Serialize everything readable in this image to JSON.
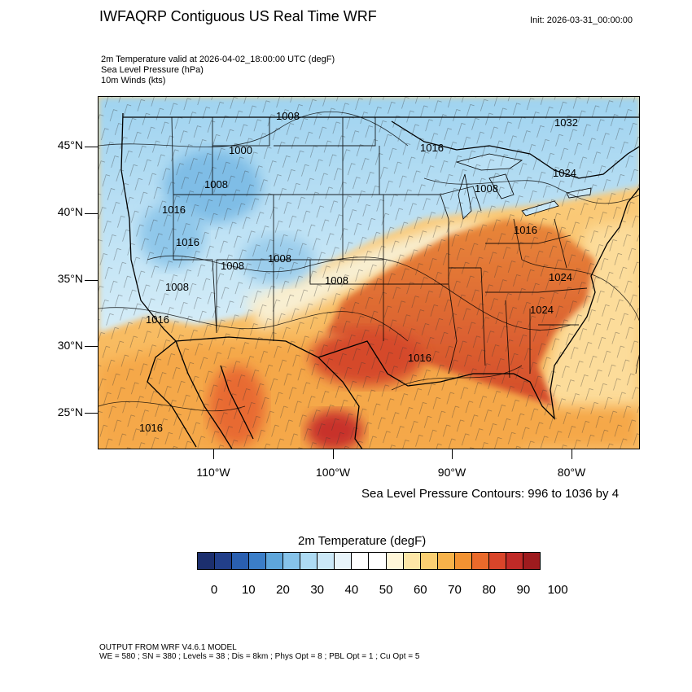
{
  "header": {
    "title": "IWFAQRP Contiguous US Real Time WRF",
    "init": "Init: 2026-03-31_00:00:00",
    "lines": [
      "2m Temperature valid at 2026-04-02_18:00:00 UTC   (degF)",
      "Sea Level Pressure   (hPa)",
      "10m Winds   (kts)"
    ]
  },
  "map": {
    "lat_labels": [
      "45°N",
      "40°N",
      "35°N",
      "30°N",
      "25°N"
    ],
    "lon_labels": [
      "110°W",
      "100°W",
      "90°W",
      "80°W"
    ],
    "slp_labels": [
      "1008",
      "1032",
      "1000",
      "1016",
      "1008",
      "1024",
      "1016",
      "1008",
      "1016",
      "1016",
      "1008",
      "1008",
      "1008",
      "1024",
      "1008",
      "1024",
      "1016",
      "1016",
      "1016"
    ]
  },
  "contour_note": "Sea Level Pressure Contours: 996 to 1036 by 4",
  "colorbar": {
    "title": "2m Temperature  (degF)",
    "ticks": [
      "0",
      "10",
      "20",
      "30",
      "40",
      "50",
      "60",
      "70",
      "80",
      "90",
      "100"
    ],
    "colors": [
      "#1c2f6e",
      "#223f8a",
      "#2a5fb0",
      "#3b7ec8",
      "#5ea6db",
      "#86c3ea",
      "#addbf4",
      "#cbe8f7",
      "#e8f4fa",
      "#ffffff",
      "#ffffff",
      "#fff6d8",
      "#fde6a6",
      "#fbcf72",
      "#f7b24a",
      "#f29232",
      "#ea6a2b",
      "#d9452a",
      "#c02a27",
      "#9e1b1e"
    ]
  },
  "footer": {
    "line1": "OUTPUT FROM WRF V4.6.1 MODEL",
    "line2": "WE = 580 ; SN = 380 ; Levels = 38 ; Dis = 8km ; Phys Opt = 8 ; PBL Opt = 1 ; Cu Opt = 5"
  }
}
